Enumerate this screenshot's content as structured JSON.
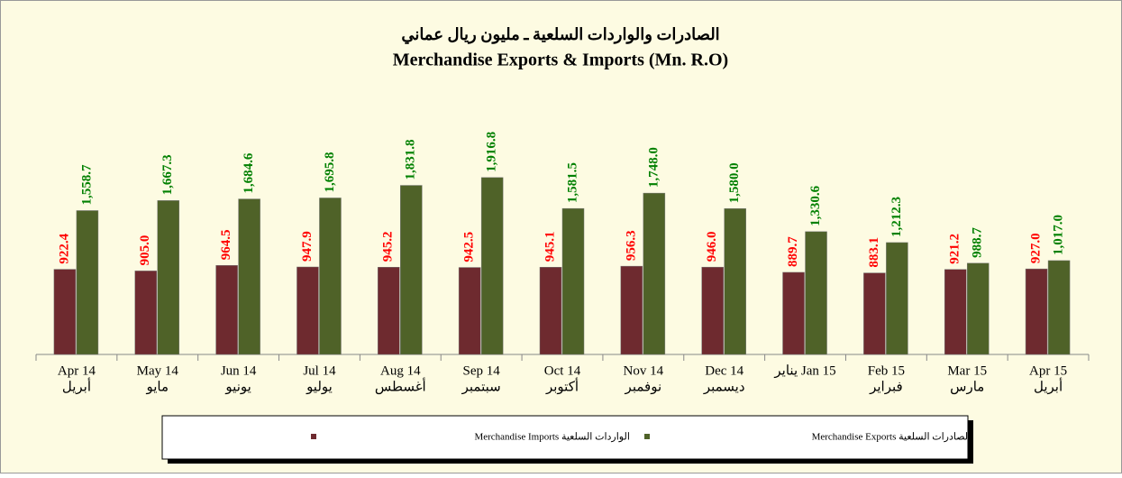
{
  "chart_data": {
    "type": "bar",
    "title": "الصادرات والواردات السلعية ـ مليون ريال عماني",
    "subtitle": "Merchandise Exports & Imports (Mn. R.O)",
    "categories": [
      [
        "Apr 14",
        "أبريل"
      ],
      [
        "May 14",
        "مايو"
      ],
      [
        "Jun  14",
        "يونيو"
      ],
      [
        "Jul  14",
        "يوليو"
      ],
      [
        "Aug 14",
        "أغسطس"
      ],
      [
        "Sep 14",
        "سبتمبر"
      ],
      [
        "Oct 14",
        "أكتوبر"
      ],
      [
        "Nov 14",
        "نوفمبر"
      ],
      [
        "Dec 14",
        "ديسمبر"
      ],
      [
        "يناير Jan 15"
      ],
      [
        "Feb 15",
        "فبراير"
      ],
      [
        "Mar 15",
        "مارس"
      ],
      [
        "Apr 15",
        "أبريل"
      ]
    ],
    "series": [
      {
        "name": "الواردات السلعية Merchandise Imports",
        "color": "#6e2a2f",
        "label_color": "#ff0000",
        "values": [
          922.4,
          905.0,
          964.5,
          947.9,
          945.2,
          942.5,
          945.1,
          956.3,
          946.0,
          889.7,
          883.1,
          921.2,
          927.0
        ],
        "value_labels": [
          "922.4",
          "905.0",
          "964.5",
          "947.9",
          "945.2",
          "942.5",
          "945.1",
          "956.3",
          "946.0",
          "889.7",
          "883.1",
          "921.2",
          "927.0"
        ]
      },
      {
        "name": "الصادرات السلعية Merchandise Exports",
        "color": "#4f6228",
        "label_color": "#008000",
        "values": [
          1558.7,
          1667.3,
          1684.6,
          1695.8,
          1831.8,
          1916.8,
          1581.5,
          1748.0,
          1580.0,
          1330.6,
          1212.3,
          988.7,
          1017.0
        ],
        "value_labels": [
          "1,558.7",
          "1,667.3",
          "1,684.6",
          "1,695.8",
          "1,831.8",
          "1,916.8",
          "1,581.5",
          "1,748.0",
          "1,580.0",
          "1,330.6",
          "1,212.3",
          "988.7",
          "1,017.0"
        ]
      }
    ],
    "ylim": [
      0,
      3000
    ]
  }
}
